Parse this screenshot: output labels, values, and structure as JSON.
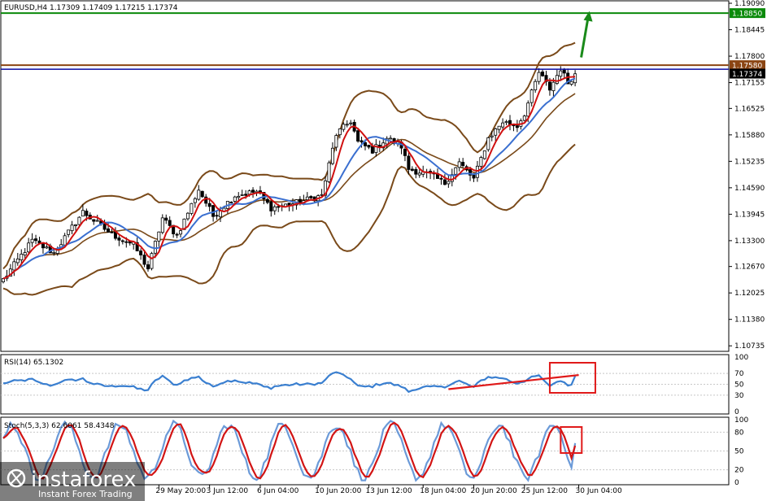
{
  "header": {
    "symbol_line": "EURUSD,H4  1.17309 1.17409 1.17215 1.17374"
  },
  "price_levels": {
    "green": {
      "value": 1.1885,
      "label": "1.18850",
      "color": "#0a8a0a"
    },
    "brown": {
      "value": 1.1758,
      "label": "1.17580",
      "color": "#8b4513"
    },
    "blue": {
      "value": 1.1748,
      "label": "",
      "color": "#0a0aa0"
    },
    "current": {
      "value": 1.17374,
      "label": "1.17374",
      "color": "#000000"
    }
  },
  "arrow": {
    "color": "#1a8a1a",
    "icon": "up-arrow-icon"
  },
  "rsi": {
    "title": "RSI(14) 65.1302",
    "levels": [
      "100",
      "70",
      "50",
      "30",
      "0"
    ],
    "color": "#3a7fd0"
  },
  "stoch": {
    "title": "Stoch(5,3,3) 62.6061 58.4348",
    "levels": [
      "100",
      "80",
      "50",
      "20",
      "0"
    ],
    "main_color": "#6b9ad8",
    "signal_color": "#d21414"
  },
  "watermark": {
    "brand": "instaforex",
    "tagline": "Instant Forex Trading",
    "icon": "instaforex-logo-icon"
  },
  "chart_data": {
    "type": "candlestick",
    "symbol": "EURUSD",
    "timeframe": "H4",
    "price_axis": {
      "ylim": [
        1.1062,
        1.1913
      ],
      "tick_values": [
        1.10735,
        1.1138,
        1.12025,
        1.1267,
        1.133,
        1.13945,
        1.1459,
        1.15235,
        1.1588,
        1.16525,
        1.17155,
        1.178,
        1.18445,
        1.1909
      ],
      "tick_labels": [
        "1.10735",
        "1.11380",
        "1.12025",
        "1.12670",
        "1.13300",
        "1.13945",
        "1.14590",
        "1.15235",
        "1.15880",
        "1.16525",
        "1.17155",
        "1.17800",
        "1.18445",
        "1.19090"
      ]
    },
    "time_axis": {
      "labels": [
        "29 May 20:00",
        "3 Jun 12:00",
        "6 Jun 04:00",
        "10 Jun 20:00",
        "13 Jun 12:00",
        "18 Jun 04:00",
        "20 Jun 20:00",
        "25 Jun 12:00",
        "30 Jun 04:00"
      ],
      "label_bars": [
        43,
        57,
        71,
        87,
        101,
        116,
        130,
        144,
        159
      ]
    },
    "close_keypoints": [
      [
        0,
        1.1235
      ],
      [
        8,
        1.133
      ],
      [
        14,
        1.13
      ],
      [
        22,
        1.14
      ],
      [
        30,
        1.1345
      ],
      [
        36,
        1.132
      ],
      [
        40,
        1.1262
      ],
      [
        44,
        1.1385
      ],
      [
        48,
        1.1342
      ],
      [
        54,
        1.1455
      ],
      [
        58,
        1.139
      ],
      [
        64,
        1.144
      ],
      [
        70,
        1.145
      ],
      [
        74,
        1.141
      ],
      [
        80,
        1.142
      ],
      [
        88,
        1.144
      ],
      [
        92,
        1.159
      ],
      [
        96,
        1.1622
      ],
      [
        98,
        1.157
      ],
      [
        102,
        1.155
      ],
      [
        106,
        1.158
      ],
      [
        110,
        1.156
      ],
      [
        112,
        1.1505
      ],
      [
        118,
        1.149
      ],
      [
        122,
        1.147
      ],
      [
        126,
        1.152
      ],
      [
        130,
        1.148
      ],
      [
        134,
        1.158
      ],
      [
        138,
        1.162
      ],
      [
        142,
        1.161
      ],
      [
        144,
        1.164
      ],
      [
        148,
        1.174
      ],
      [
        151,
        1.17
      ],
      [
        154,
        1.175
      ],
      [
        156,
        1.1715
      ],
      [
        158,
        1.1737
      ]
    ],
    "bollinger_bands": {
      "period": 20,
      "deviations": 2,
      "color": "#7a4a1a"
    },
    "moving_averages": [
      {
        "period": 5,
        "color": "#d01010"
      },
      {
        "period": 12,
        "color": "#3a6fd0"
      }
    ],
    "rsi_last": 65.1302,
    "stoch_main_last": 62.6061,
    "stoch_signal_last": 58.4348
  }
}
